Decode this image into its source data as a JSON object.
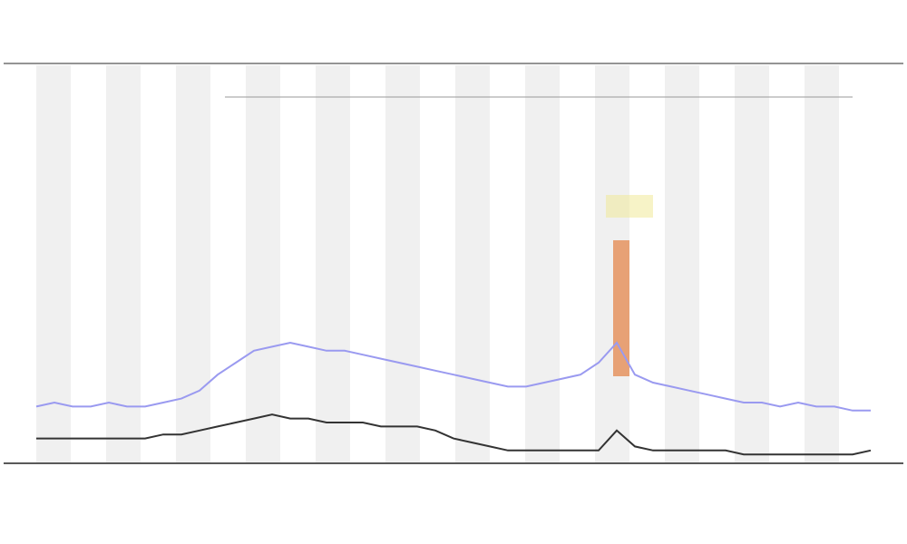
{
  "chart_data": {
    "type": "line",
    "categories": [
      null,
      null,
      null,
      null,
      null,
      null,
      null,
      null,
      null,
      null,
      null,
      null,
      null,
      null,
      null,
      null,
      null,
      null,
      null,
      null,
      null,
      null,
      null,
      null,
      null,
      null,
      null,
      null,
      null,
      null,
      null,
      null,
      null,
      null,
      null,
      null,
      null,
      null,
      null,
      null,
      null,
      null,
      null,
      null,
      null,
      null,
      null
    ],
    "series": [
      {
        "color": "#9a9af0",
        "values": [
          14,
          15,
          14,
          14,
          15,
          14,
          14,
          15,
          16,
          18,
          22,
          25,
          28,
          29,
          30,
          29,
          28,
          28,
          27,
          26,
          25,
          24,
          23,
          22,
          21,
          20,
          19,
          19,
          20,
          21,
          22,
          25,
          30,
          22,
          20,
          19,
          18,
          17,
          16,
          15,
          15,
          14,
          15,
          14,
          14,
          13,
          13
        ]
      },
      {
        "color": "#333333",
        "values": [
          6,
          6,
          6,
          6,
          6,
          6,
          6,
          7,
          7,
          8,
          9,
          10,
          11,
          12,
          11,
          11,
          10,
          10,
          10,
          9,
          9,
          9,
          8,
          6,
          5,
          4,
          3,
          3,
          3,
          3,
          3,
          3,
          8,
          4,
          3,
          3,
          3,
          3,
          3,
          2,
          2,
          2,
          2,
          2,
          2,
          2,
          3
        ]
      }
    ],
    "ylim": [
      0,
      100
    ]
  }
}
